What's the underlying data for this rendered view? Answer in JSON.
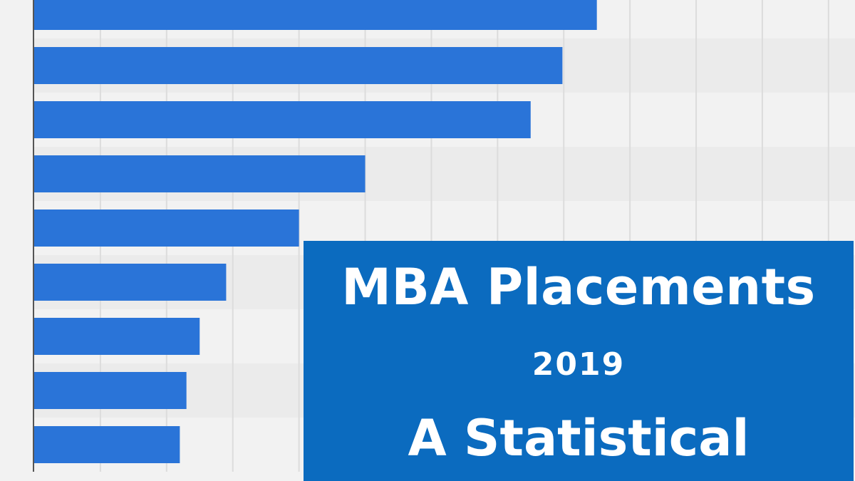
{
  "chart_data": {
    "type": "bar",
    "orientation": "horizontal",
    "categories": [
      "",
      "",
      "",
      "",
      "",
      "",
      "",
      "",
      ""
    ],
    "values": [
      850,
      798,
      750,
      500,
      400,
      290,
      250,
      230,
      220
    ],
    "xlim": [
      0,
      1240
    ],
    "grid": true,
    "bar_color": "#2a74d8",
    "title": "",
    "xlabel": "",
    "ylabel": ""
  },
  "overlay": {
    "title": "MBA Placements",
    "year": "2019",
    "subtitle": "A Statistical",
    "background": "#0b6bbf",
    "text_color": "#ffffff"
  },
  "colors": {
    "background": "#f2f2f2",
    "band": "#ebebeb",
    "gridline": "#dcdcdc",
    "axis": "#555555"
  }
}
